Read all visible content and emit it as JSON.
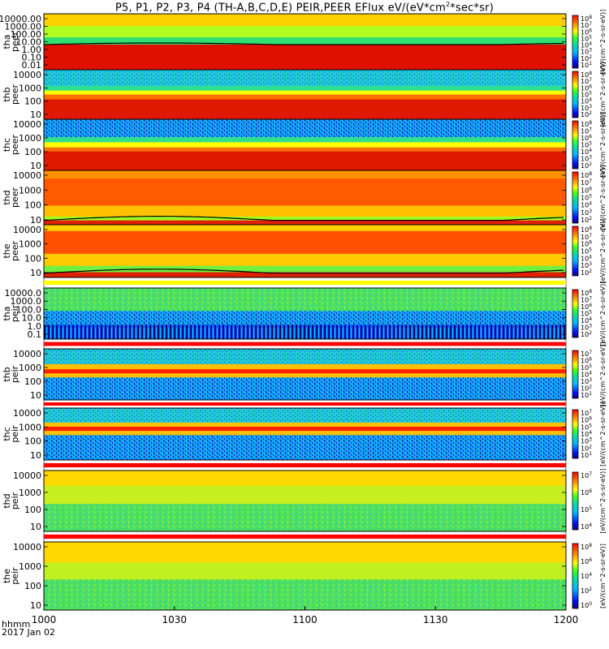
{
  "title": "P5, P1, P2, P3, P4 (TH-A,B,C,D,E) PEIR,PEER EFlux eV/(eV*cm",
  "title_sup": "2",
  "title_tail": "*sec*sr)",
  "xaxis": {
    "label_line1": "hhmm",
    "label_line2": "2017 Jan 02"
  },
  "colorbar_label": "[eV/(cm^2-s-sr-eV)]",
  "chart_data": {
    "type": "heatmap",
    "title": "P5, P1, P2, P3, P4 (TH-A,B,C,D,E) PEIR,PEER EFlux eV/(eV*cm2*sec*sr)",
    "x": {
      "label": "hhmm 2017 Jan 02",
      "range": [
        "1000",
        "1200"
      ],
      "ticks": [
        "1000",
        "1030",
        "1100",
        "1130",
        "1200"
      ]
    },
    "colorbar": {
      "scale": "log",
      "label": "[eV/(cm^2-s-sr-eV)]"
    },
    "panels": [
      {
        "name": "tha-peer",
        "ylabel": [
          "tha",
          "peer"
        ],
        "yticks": [
          "10000.00",
          "1000.00",
          "100.00",
          "10.00",
          "1.00",
          "0.10",
          "0.01"
        ],
        "cticks": [
          "10^8",
          "10^7",
          "10^6",
          "10^5",
          "10^4",
          "10^3",
          "10^2",
          "10^1"
        ]
      },
      {
        "name": "thb-peer",
        "ylabel": [
          "thb",
          "peer"
        ],
        "yticks": [
          "10000",
          "1000",
          "100",
          "10"
        ],
        "cticks": [
          "10^8",
          "10^7",
          "10^6",
          "10^5",
          "10^4",
          "10^3",
          "10^2"
        ]
      },
      {
        "name": "thc-peer",
        "ylabel": [
          "thc",
          "peer"
        ],
        "yticks": [
          "10000",
          "1000",
          "100",
          "10"
        ],
        "cticks": [
          "10^8",
          "10^7",
          "10^6",
          "10^5",
          "10^4",
          "10^3",
          "10^2"
        ]
      },
      {
        "name": "thd-peer",
        "ylabel": [
          "thd",
          "peer"
        ],
        "yticks": [
          "10000",
          "1000",
          "100",
          "10"
        ],
        "cticks": [
          "10^8",
          "10^7",
          "10^6",
          "10^5",
          "10^4",
          "10^3",
          "10^2"
        ]
      },
      {
        "name": "the-peer",
        "ylabel": [
          "the",
          "peer"
        ],
        "yticks": [
          "10000",
          "1000",
          "100",
          "10"
        ],
        "cticks": [
          "10^8",
          "10^7",
          "10^6",
          "10^5",
          "10^4",
          "10^3",
          "10^2"
        ]
      },
      {
        "name": "tha-peir",
        "ylabel": [
          "tha",
          "peir"
        ],
        "yticks": [
          "10000.0",
          "1000.0",
          "100.0",
          "10.0",
          "1.0",
          "0.1"
        ],
        "cticks": [
          "10^8",
          "10^7",
          "10^6",
          "10^5",
          "10^4",
          "10^3",
          "10^2"
        ]
      },
      {
        "name": "thb-peir",
        "ylabel": [
          "thb",
          "peir"
        ],
        "yticks": [
          "10000",
          "1000",
          "100",
          "10"
        ],
        "cticks": [
          "10^7",
          "10^6",
          "10^5",
          "10^4",
          "10^3",
          "10^2",
          "10^1"
        ]
      },
      {
        "name": "thc-peir",
        "ylabel": [
          "thc",
          "peir"
        ],
        "yticks": [
          "10000",
          "1000",
          "100",
          "10"
        ],
        "cticks": [
          "10^7",
          "10^6",
          "10^5",
          "10^4",
          "10^3",
          "10^2",
          "10^1"
        ]
      },
      {
        "name": "thd-peir",
        "ylabel": [
          "thd",
          "peir"
        ],
        "yticks": [
          "10000",
          "1000",
          "100",
          "10"
        ],
        "cticks": [
          "10^7",
          "10^6",
          "10^5",
          "10^4"
        ]
      },
      {
        "name": "the-peir",
        "ylabel": [
          "the",
          "peir"
        ],
        "yticks": [
          "10000",
          "1000",
          "100",
          "10"
        ],
        "cticks": [
          "10^8",
          "10^6",
          "10^4",
          "10^2",
          "10^0"
        ]
      }
    ]
  }
}
